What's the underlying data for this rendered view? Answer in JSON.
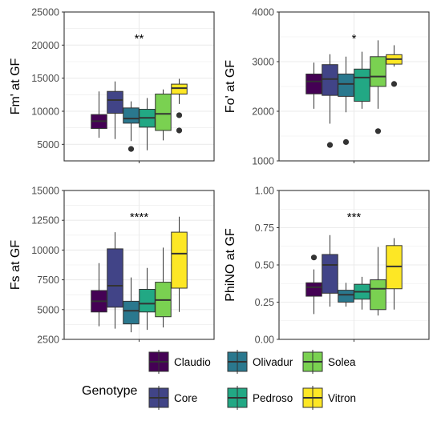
{
  "chart_data": [
    {
      "type": "boxplot",
      "ylabel": "Fm' at GF",
      "significance": "**",
      "ylim": [
        2500,
        25000
      ],
      "yticks": [
        5000,
        10000,
        15000,
        20000,
        25000
      ],
      "tick_labels": [
        "5000",
        "10000",
        "15000",
        "20000",
        "25000"
      ],
      "categories": [
        "Claudio",
        "Core",
        "Olivadur",
        "Pedroso",
        "Solea",
        "Vitron"
      ],
      "boxes": [
        {
          "q1": 7400,
          "median": 8500,
          "q3": 9500,
          "whisker_low": 6000,
          "whisker_high": 13000,
          "outliers": []
        },
        {
          "q1": 9700,
          "median": 11700,
          "q3": 13000,
          "whisker_low": 5800,
          "whisker_high": 14500,
          "outliers": []
        },
        {
          "q1": 8200,
          "median": 8900,
          "q3": 10500,
          "whisker_low": 5500,
          "whisker_high": 11500,
          "outliers": [
            4300
          ]
        },
        {
          "q1": 7600,
          "median": 9000,
          "q3": 10300,
          "whisker_low": 4100,
          "whisker_high": 12000,
          "outliers": []
        },
        {
          "q1": 7100,
          "median": 9600,
          "q3": 12600,
          "whisker_low": 5600,
          "whisker_high": 13300,
          "outliers": []
        },
        {
          "q1": 12600,
          "median": 13500,
          "q3": 14100,
          "whisker_low": 11100,
          "whisker_high": 14900,
          "outliers": [
            9400,
            7100
          ]
        }
      ]
    },
    {
      "type": "boxplot",
      "ylabel": "Fo' at GF",
      "significance": "*",
      "ylim": [
        1000,
        4000
      ],
      "yticks": [
        1000,
        2000,
        3000,
        4000
      ],
      "tick_labels": [
        "1000",
        "2000",
        "3000",
        "4000"
      ],
      "categories": [
        "Claudio",
        "Core",
        "Olivadur",
        "Pedroso",
        "Solea",
        "Vitron"
      ],
      "boxes": [
        {
          "q1": 2350,
          "median": 2600,
          "q3": 2750,
          "whisker_low": 2050,
          "whisker_high": 2980,
          "outliers": []
        },
        {
          "q1": 2320,
          "median": 2650,
          "q3": 2940,
          "whisker_low": 1750,
          "whisker_high": 3150,
          "outliers": [
            1320
          ]
        },
        {
          "q1": 2300,
          "median": 2550,
          "q3": 2750,
          "whisker_low": 1980,
          "whisker_high": 3100,
          "outliers": [
            1380
          ]
        },
        {
          "q1": 2200,
          "median": 2680,
          "q3": 2850,
          "whisker_low": 2050,
          "whisker_high": 3200,
          "outliers": []
        },
        {
          "q1": 2500,
          "median": 2700,
          "q3": 3100,
          "whisker_low": 2050,
          "whisker_high": 3430,
          "outliers": [
            1600
          ]
        },
        {
          "q1": 2950,
          "median": 3050,
          "q3": 3140,
          "whisker_low": 2900,
          "whisker_high": 3330,
          "outliers": [
            2550
          ]
        }
      ]
    },
    {
      "type": "boxplot",
      "ylabel": "Fs at GF",
      "significance": "****",
      "ylim": [
        2500,
        15000
      ],
      "yticks": [
        2500,
        5000,
        7500,
        10000,
        12500,
        15000
      ],
      "tick_labels": [
        "2500",
        "5000",
        "7500",
        "10000",
        "12500",
        "15000"
      ],
      "categories": [
        "Claudio",
        "Core",
        "Olivadur",
        "Pedroso",
        "Solea",
        "Vitron"
      ],
      "boxes": [
        {
          "q1": 4800,
          "median": 5700,
          "q3": 6600,
          "whisker_low": 3600,
          "whisker_high": 8900,
          "outliers": []
        },
        {
          "q1": 5200,
          "median": 7000,
          "q3": 10100,
          "whisker_low": 3400,
          "whisker_high": 11500,
          "outliers": []
        },
        {
          "q1": 3800,
          "median": 4900,
          "q3": 5700,
          "whisker_low": 3100,
          "whisker_high": 7700,
          "outliers": []
        },
        {
          "q1": 4800,
          "median": 5500,
          "q3": 6700,
          "whisker_low": 3300,
          "whisker_high": 8500,
          "outliers": []
        },
        {
          "q1": 4400,
          "median": 5800,
          "q3": 7300,
          "whisker_low": 3500,
          "whisker_high": 10200,
          "outliers": []
        },
        {
          "q1": 6800,
          "median": 9700,
          "q3": 11500,
          "whisker_low": 4800,
          "whisker_high": 12800,
          "outliers": []
        }
      ]
    },
    {
      "type": "boxplot",
      "ylabel": "PhiNO at GF",
      "significance": "***",
      "ylim": [
        0,
        1
      ],
      "yticks": [
        0,
        0.25,
        0.5,
        0.75,
        1
      ],
      "tick_labels": [
        "0.00",
        "0.25",
        "0.50",
        "0.75",
        "1.00"
      ],
      "categories": [
        "Claudio",
        "Core",
        "Olivadur",
        "Pedroso",
        "Solea",
        "Vitron"
      ],
      "boxes": [
        {
          "q1": 0.29,
          "median": 0.35,
          "q3": 0.38,
          "whisker_low": 0.17,
          "whisker_high": 0.47,
          "outliers": [
            0.55
          ]
        },
        {
          "q1": 0.31,
          "median": 0.5,
          "q3": 0.57,
          "whisker_low": 0.22,
          "whisker_high": 0.7,
          "outliers": []
        },
        {
          "q1": 0.25,
          "median": 0.3,
          "q3": 0.33,
          "whisker_low": 0.22,
          "whisker_high": 0.38,
          "outliers": []
        },
        {
          "q1": 0.27,
          "median": 0.32,
          "q3": 0.37,
          "whisker_low": 0.2,
          "whisker_high": 0.42,
          "outliers": []
        },
        {
          "q1": 0.2,
          "median": 0.34,
          "q3": 0.4,
          "whisker_low": 0.16,
          "whisker_high": 0.62,
          "outliers": []
        },
        {
          "q1": 0.34,
          "median": 0.49,
          "q3": 0.63,
          "whisker_low": 0.2,
          "whisker_high": 0.68,
          "outliers": []
        }
      ]
    }
  ],
  "colors": {
    "Claudio": "#440154",
    "Core": "#414487",
    "Olivadur": "#2a788e",
    "Pedroso": "#22a884",
    "Solea": "#7ad151",
    "Vitron": "#fde725",
    "panel_background": "#ffffff",
    "grid": "#ebebeb",
    "border": "#333333",
    "line": "#333333",
    "outlier": "#333333"
  },
  "legend": {
    "title": "Genotype",
    "placement": "bottom",
    "items": [
      "Claudio",
      "Core",
      "Olivadur",
      "Pedroso",
      "Solea",
      "Vitron"
    ]
  }
}
